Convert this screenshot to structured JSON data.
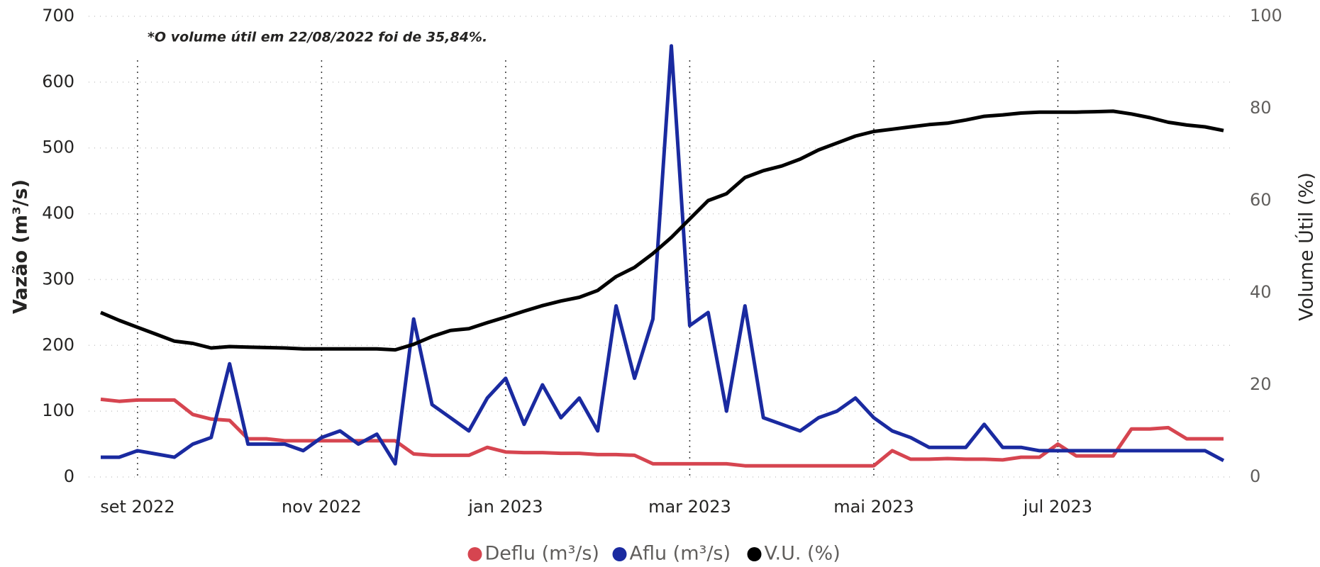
{
  "chart_data": {
    "type": "line",
    "annotation": "*O volume útil em 22/08/2022 foi de 35,84%.",
    "ylabel": "Vazão (m³/s)",
    "y2label": "Volume Útil (%)",
    "categories": [
      null,
      null,
      "set 2022",
      null,
      null,
      null,
      null,
      null,
      null,
      null,
      null,
      null,
      "nov 2022",
      null,
      null,
      null,
      null,
      null,
      null,
      null,
      null,
      null,
      "jan 2023",
      null,
      null,
      null,
      null,
      null,
      null,
      null,
      null,
      null,
      "mar 2023",
      null,
      null,
      null,
      null,
      null,
      null,
      null,
      null,
      null,
      "mai 2023",
      null,
      null,
      null,
      null,
      null,
      null,
      null,
      null,
      null,
      "jul 2023",
      null,
      null,
      null,
      null,
      null,
      null,
      null,
      null,
      null
    ],
    "series": [
      {
        "name": "Deflu (m³/s)",
        "color": "#d64550",
        "values": [
          118,
          115,
          117,
          117,
          117,
          95,
          88,
          86,
          58,
          58,
          55,
          55,
          55,
          55,
          55,
          55,
          55,
          35,
          33,
          33,
          33,
          45,
          38,
          37,
          37,
          36,
          36,
          34,
          34,
          33,
          20,
          20,
          20,
          20,
          20,
          17,
          17,
          17,
          17,
          17,
          17,
          17,
          17,
          40,
          27,
          27,
          28,
          27,
          27,
          26,
          30,
          30,
          50,
          32,
          32,
          32,
          73,
          73,
          75,
          58,
          58,
          58
        ]
      },
      {
        "name": "Aflu (m³/s)",
        "color": "#1a2aa0",
        "values": [
          30,
          30,
          40,
          35,
          30,
          50,
          60,
          172,
          50,
          50,
          50,
          40,
          60,
          70,
          50,
          65,
          20,
          240,
          110,
          90,
          70,
          120,
          150,
          80,
          140,
          90,
          120,
          70,
          260,
          150,
          240,
          655,
          230,
          250,
          100,
          260,
          90,
          80,
          70,
          90,
          100,
          120,
          90,
          70,
          60,
          45,
          45,
          45,
          80,
          45,
          45,
          40,
          40,
          40,
          40,
          40,
          40,
          40,
          40,
          40,
          40,
          25
        ]
      },
      {
        "name": "V.U. (%)",
        "color": "#000000",
        "axis": "y2",
        "values": [
          35.7,
          34,
          32.5,
          31,
          29.5,
          29,
          28,
          28.3,
          28.2,
          28.1,
          28,
          27.8,
          27.8,
          27.8,
          27.8,
          27.8,
          27.6,
          28.8,
          30.5,
          31.8,
          32.2,
          33.5,
          34.7,
          36,
          37.2,
          38.2,
          39,
          40.5,
          43.5,
          45.5,
          48.5,
          52,
          56,
          60,
          61.5,
          65,
          66.5,
          67.5,
          69,
          71,
          72.5,
          74,
          75,
          75.5,
          76,
          76.5,
          76.8,
          77.5,
          78.3,
          78.6,
          79,
          79.2,
          79.2,
          79.2,
          79.3,
          79.4,
          78.8,
          78,
          77,
          76.4,
          76,
          75.2
        ]
      }
    ],
    "ylim": [
      0,
      700
    ],
    "yticks": [
      0,
      100,
      200,
      300,
      400,
      500,
      600,
      700
    ],
    "y2lim": [
      0,
      100
    ],
    "y2ticks": [
      0,
      20,
      40,
      60,
      80,
      100
    ],
    "grid": true,
    "legend": "bottom"
  }
}
